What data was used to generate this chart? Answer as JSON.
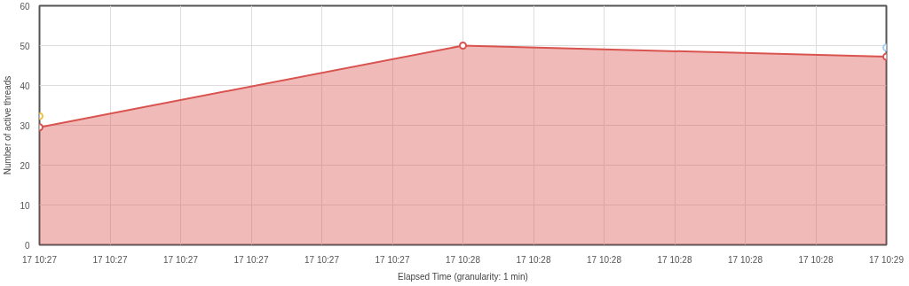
{
  "chart_data": {
    "type": "area",
    "xlabel": "Elapsed Time (granularity: 1 min)",
    "ylabel": "Number of active threads",
    "categories": [
      "17 10:27",
      "17 10:27",
      "17 10:27",
      "17 10:27",
      "17 10:27",
      "17 10:27",
      "17 10:28",
      "17 10:28",
      "17 10:28",
      "17 10:28",
      "17 10:28",
      "17 10:28",
      "17 10:29"
    ],
    "series": [
      {
        "color": "#d9534f",
        "values": [
          29.5,
          null,
          null,
          null,
          null,
          null,
          50,
          null,
          null,
          null,
          null,
          null,
          47.2
        ]
      },
      {
        "type": "scatter",
        "color": "#f0c040",
        "values": [
          32.3,
          null,
          null,
          null,
          null,
          null,
          null,
          null,
          null,
          null,
          null,
          null,
          null
        ]
      },
      {
        "type": "scatter",
        "color": "#a8d0f0",
        "values": [
          null,
          null,
          null,
          null,
          null,
          null,
          null,
          null,
          null,
          null,
          null,
          null,
          49.5
        ]
      }
    ],
    "ylim": [
      0,
      60
    ],
    "yticks": [
      0,
      10,
      20,
      30,
      40,
      50,
      60
    ],
    "grid": true,
    "marker": "circle"
  }
}
